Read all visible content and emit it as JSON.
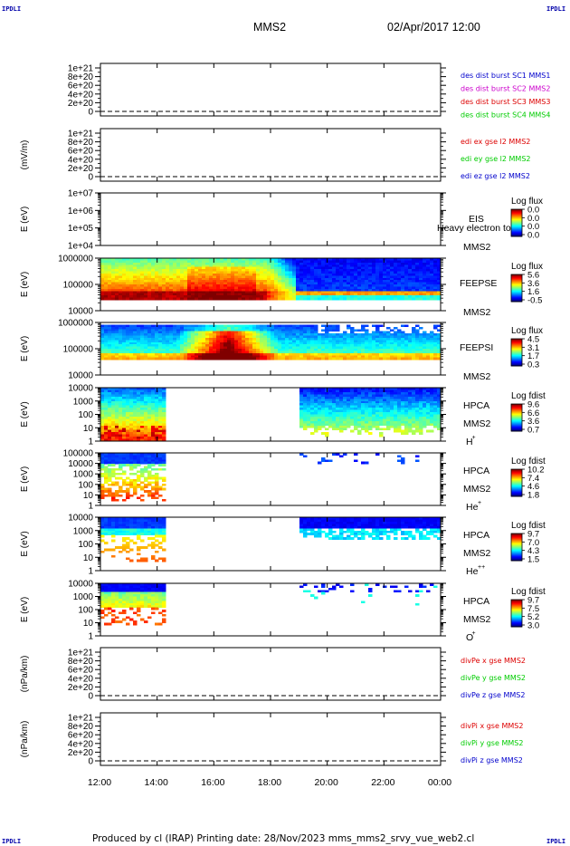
{
  "header": {
    "spacecraft": "MMS2",
    "datetime": "02/Apr/2017 12:00"
  },
  "corner_marks": [
    "IPDLI",
    "IPDLI",
    "IPDLI",
    "IPDLI"
  ],
  "footer": {
    "credit": "Produced by cl (IRAP)   Printing date: 28/Nov/2023   mms_mms2_srvy_vue_web2.cl"
  },
  "colors": {
    "c_red": "#dd0000",
    "c_magenta": "#cc00cc",
    "c_green": "#00cc00",
    "c_blue": "#0000cc"
  },
  "chart_data": {
    "type": "stacked_time_series_and_spectrograms",
    "x": {
      "ticks": [
        "12:00",
        "14:00",
        "16:00",
        "18:00",
        "20:00",
        "22:00",
        "00:00"
      ],
      "range_hours": [
        12,
        24
      ]
    },
    "panels": [
      {
        "id": "des-dist",
        "kind": "line",
        "ylabel": "",
        "yticks": [
          "1e+21",
          "8e+20",
          "6e+20",
          "4e+20",
          "2e+20",
          "0"
        ],
        "yrange": [
          0,
          1.1e+21
        ],
        "series": [
          {
            "name": "des dist burst SC1 MMS1",
            "color": "#0000cc"
          },
          {
            "name": "des dist burst SC2 MMS2",
            "color": "#cc00cc"
          },
          {
            "name": "des dist burst SC3 MMS3",
            "color": "#dd0000"
          },
          {
            "name": "des dist burst SC4 MMS4",
            "color": "#00cc00"
          }
        ]
      },
      {
        "id": "edi",
        "kind": "line",
        "ylabel": "(mV/m)",
        "yticks": [
          "1e+21",
          "8e+20",
          "6e+20",
          "4e+20",
          "2e+20",
          "0"
        ],
        "yrange": [
          0,
          1.1e+21
        ],
        "series": [
          {
            "name": "edi ex gse l2 MMS2",
            "color": "#dd0000"
          },
          {
            "name": "edi ey gse l2 MMS2",
            "color": "#00cc00"
          },
          {
            "name": "edi ez gse l2 MMS2",
            "color": "#0000cc"
          }
        ]
      },
      {
        "id": "eis",
        "kind": "spectrogram",
        "ylabel": "E (eV)",
        "yticks": [
          "1e+07",
          "1e+06",
          "1e+05",
          "1e+04"
        ],
        "instrument": "EIS",
        "instrument_sub": "MMS2",
        "overflow_text": "Heavy electron to",
        "colorbar": {
          "title": "Log flux",
          "labels": [
            "0.0",
            "0.0",
            "0.0",
            "0.0"
          ]
        },
        "pattern": "none"
      },
      {
        "id": "feepse",
        "kind": "spectrogram",
        "ylabel": "E (eV)",
        "yticks": [
          "1000000",
          "100000",
          "10000"
        ],
        "instrument": "FEEPSE",
        "instrument_sub": "MMS2",
        "colorbar": {
          "title": "Log flux",
          "labels": [
            "5.6",
            "3.6",
            "1.6",
            "-0.5"
          ]
        },
        "pattern": "feepse"
      },
      {
        "id": "feepsi",
        "kind": "spectrogram",
        "ylabel": "E (eV)",
        "yticks": [
          "1000000",
          "100000",
          "10000"
        ],
        "instrument": "FEEPSI",
        "instrument_sub": "MMS2",
        "colorbar": {
          "title": "Log flux",
          "labels": [
            "4.5",
            "3.1",
            "1.7",
            "0.3"
          ]
        },
        "pattern": "feepsi"
      },
      {
        "id": "hpca-h",
        "kind": "spectrogram",
        "ylabel": "E (eV)",
        "yticks": [
          "10000",
          "1000",
          "100",
          "10",
          "1"
        ],
        "instrument": "HPCA",
        "instrument_sub": "MMS2",
        "species": "H",
        "species_sup": "+",
        "colorbar": {
          "title": "Log fdist",
          "labels": [
            "9.6",
            "6.6",
            "3.6",
            "0.7"
          ]
        },
        "pattern": "hpca_h"
      },
      {
        "id": "hpca-he",
        "kind": "spectrogram",
        "ylabel": "E (eV)",
        "yticks": [
          "100000",
          "10000",
          "1000",
          "100",
          "10",
          "1"
        ],
        "instrument": "HPCA",
        "instrument_sub": "MMS2",
        "species": "He",
        "species_sup": "+",
        "colorbar": {
          "title": "Log fdist",
          "labels": [
            "10.2",
            "7.4",
            "4.6",
            "1.8"
          ]
        },
        "pattern": "hpca_he"
      },
      {
        "id": "hpca-he2",
        "kind": "spectrogram",
        "ylabel": "E (eV)",
        "yticks": [
          "10000",
          "1000",
          "100",
          "10",
          "1"
        ],
        "instrument": "HPCA",
        "instrument_sub": "MMS2",
        "species": "He",
        "species_sup": "++",
        "colorbar": {
          "title": "Log fdist",
          "labels": [
            "9.7",
            "7.0",
            "4.3",
            "1.5"
          ]
        },
        "pattern": "hpca_he2"
      },
      {
        "id": "hpca-o",
        "kind": "spectrogram",
        "ylabel": "E (eV)",
        "yticks": [
          "10000",
          "1000",
          "100",
          "10",
          "1"
        ],
        "instrument": "HPCA",
        "instrument_sub": "MMS2",
        "species": "O",
        "species_sup": "+",
        "colorbar": {
          "title": "Log fdist",
          "labels": [
            "9.7",
            "7.5",
            "5.2",
            "3.0"
          ]
        },
        "pattern": "hpca_o"
      },
      {
        "id": "divpe",
        "kind": "line",
        "ylabel": "(nPa/km)",
        "yticks": [
          "1e+21",
          "8e+20",
          "6e+20",
          "4e+20",
          "2e+20",
          "0"
        ],
        "yrange": [
          0,
          1.1e+21
        ],
        "series": [
          {
            "name": "divPe x gse MMS2",
            "color": "#dd0000"
          },
          {
            "name": "divPe y gse MMS2",
            "color": "#00cc00"
          },
          {
            "name": "divPe z gse MMS2",
            "color": "#0000cc"
          }
        ]
      },
      {
        "id": "divpi",
        "kind": "line",
        "ylabel": "(nPa/km)",
        "yticks": [
          "1e+21",
          "8e+20",
          "6e+20",
          "4e+20",
          "2e+20",
          "0"
        ],
        "yrange": [
          0,
          1.1e+21
        ],
        "series": [
          {
            "name": "divPi x gse MMS2",
            "color": "#dd0000"
          },
          {
            "name": "divPi y gse MMS2",
            "color": "#00cc00"
          },
          {
            "name": "divPi z gse MMS2",
            "color": "#0000cc"
          }
        ]
      }
    ]
  }
}
